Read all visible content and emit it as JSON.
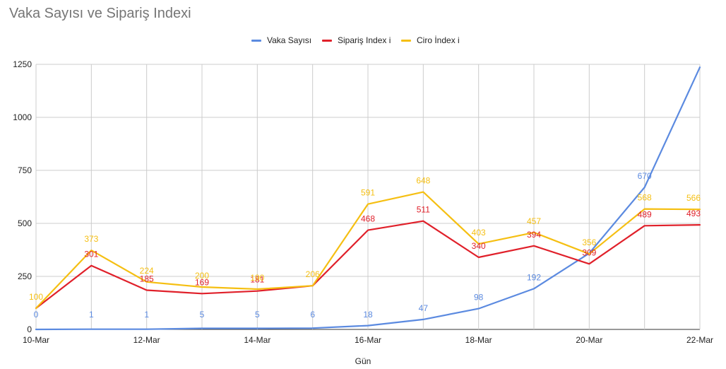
{
  "chart_data": {
    "type": "line",
    "title": "Vaka Sayısı ve Sipariş Indexi",
    "xlabel": "Gün",
    "ylabel": "",
    "ylim": [
      0,
      1250
    ],
    "yticks": [
      0,
      250,
      500,
      750,
      1000,
      1250
    ],
    "x": [
      "10-Mar",
      "11-Mar",
      "12-Mar",
      "13-Mar",
      "14-Mar",
      "15-Mar",
      "16-Mar",
      "17-Mar",
      "18-Mar",
      "19-Mar",
      "20-Mar",
      "21-Mar",
      "22-Mar"
    ],
    "xtick_labels": [
      "10-Mar",
      "",
      "12-Mar",
      "",
      "14-Mar",
      "",
      "16-Mar",
      "",
      "18-Mar",
      "",
      "20-Mar",
      "",
      "22-Mar"
    ],
    "grid": true,
    "legend_position": "top",
    "series": [
      {
        "name": "Vaka Sayısı",
        "color": "#5b8ae0",
        "values": [
          0,
          1,
          1,
          5,
          5,
          6,
          18,
          47,
          98,
          192,
          359,
          670,
          1236
        ],
        "labels": [
          "0",
          "1",
          "1",
          "5",
          "5",
          "6",
          "18",
          "47",
          "98",
          "192",
          "",
          "670",
          ""
        ]
      },
      {
        "name": "Sipariş Index i",
        "color": "#e0202a",
        "values": [
          100,
          301,
          185,
          169,
          181,
          206,
          468,
          511,
          340,
          394,
          309,
          489,
          493
        ],
        "labels": [
          "",
          "301",
          "185",
          "169",
          "181",
          "",
          "468",
          "511",
          "340",
          "394",
          "309",
          "489",
          "493"
        ]
      },
      {
        "name": "Ciro İndex i",
        "color": "#f5bf12",
        "values": [
          100,
          373,
          224,
          200,
          190,
          206,
          591,
          648,
          403,
          457,
          356,
          568,
          566
        ],
        "labels": [
          "100",
          "373",
          "224",
          "200",
          "190",
          "206",
          "591",
          "648",
          "403",
          "457",
          "356",
          "568",
          "566"
        ]
      }
    ]
  }
}
